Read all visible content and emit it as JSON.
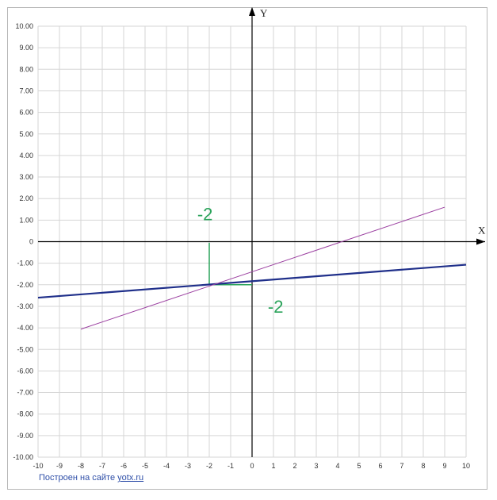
{
  "chart_data": {
    "type": "line",
    "xlabel": "X",
    "ylabel": "Y",
    "xlim": [
      -10,
      10
    ],
    "ylim": [
      -10,
      10
    ],
    "grid": true,
    "x_ticks": [
      "-10",
      "-9",
      "-8",
      "-7",
      "-6",
      "-5",
      "-4",
      "-3",
      "-2",
      "-1",
      "0",
      "1",
      "2",
      "3",
      "4",
      "5",
      "6",
      "7",
      "8",
      "9",
      "10"
    ],
    "y_ticks": [
      "10.00",
      "9.00",
      "8.00",
      "7.00",
      "6.00",
      "5.00",
      "4.00",
      "3.00",
      "2.00",
      "1.00",
      "0",
      "-1.00",
      "-2.00",
      "-3.00",
      "-4.00",
      "-5.00",
      "-6.00",
      "-7.00",
      "-8.00",
      "-9.00",
      "-10.00"
    ],
    "series": [
      {
        "color": "#1f2f8a",
        "x": [
          -10,
          10
        ],
        "y": [
          -2.6,
          -1.07
        ]
      },
      {
        "color": "#9b3fa0",
        "x": [
          -8,
          9
        ],
        "y": [
          -4.06,
          1.6
        ]
      }
    ],
    "annotations": [
      {
        "text": "-2",
        "x": -2.2,
        "y": 1.0,
        "color": "#2aa35a"
      },
      {
        "text": "-2",
        "x": 1.1,
        "y": -3.3,
        "color": "#2aa35a"
      }
    ],
    "helper_lines": [
      {
        "color": "#2aa35a",
        "x": [
          -2,
          -2
        ],
        "y": [
          -0.05,
          -2
        ]
      },
      {
        "color": "#2aa35a",
        "x": [
          -2,
          0
        ],
        "y": [
          -2,
          -2
        ]
      }
    ]
  },
  "footer": {
    "text": "Построен на сайте",
    "link": "yotx.ru"
  }
}
